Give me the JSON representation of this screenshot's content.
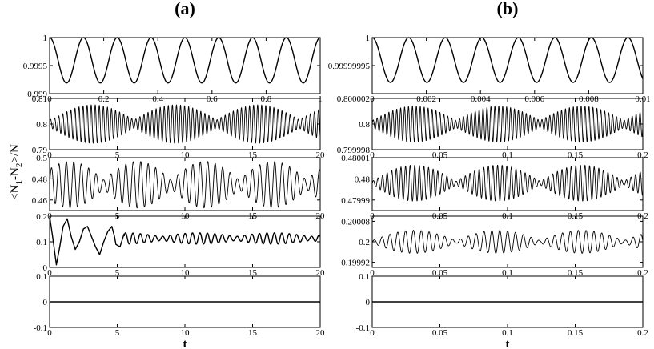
{
  "chart_data": [
    {
      "type": "line",
      "title": "(a)",
      "xlabel": "t",
      "ylabel_parts": [
        "<N",
        "1",
        "-N",
        "2",
        ">/N"
      ],
      "subplots": [
        {
          "xlim": [
            0,
            1
          ],
          "ylim": [
            0.999,
            1.0
          ],
          "x_ticks": [
            {
              "v": 0,
              "t": "0"
            },
            {
              "v": 0.2,
              "t": "0.2"
            },
            {
              "v": 0.4,
              "t": "0.4"
            },
            {
              "v": 0.6,
              "t": "0.6"
            },
            {
              "v": 0.8,
              "t": "0.8"
            },
            {
              "v": 1,
              "t": "1"
            }
          ],
          "y_ticks": [
            {
              "v": 0.999,
              "t": "0.999"
            },
            {
              "v": 0.9995,
              "t": "0.9995"
            },
            {
              "v": 1.0,
              "t": "1"
            }
          ],
          "series": [
            {
              "kind": "cosine",
              "y_min": 0.99919,
              "y_max": 1.0,
              "period": 0.125,
              "phase_start": "max"
            }
          ]
        },
        {
          "xlim": [
            0,
            20
          ],
          "ylim": [
            0.79,
            0.81
          ],
          "x_ticks": [
            {
              "v": 0,
              "t": "0"
            },
            {
              "v": 5,
              "t": "5"
            },
            {
              "v": 10,
              "t": "10"
            },
            {
              "v": 15,
              "t": "15"
            },
            {
              "v": 20,
              "t": "20"
            }
          ],
          "y_ticks": [
            {
              "v": 0.79,
              "t": "0.79"
            },
            {
              "v": 0.8,
              "t": "0.8"
            },
            {
              "v": 0.81,
              "t": "0.81"
            }
          ],
          "series": [
            {
              "kind": "beating",
              "center": 0.8,
              "amplitude": 0.0075,
              "carrier_period": 0.3,
              "envelope_period": 6.1,
              "envelope_floor": 0.22,
              "envelope_peak_t": 3.2
            }
          ]
        },
        {
          "xlim": [
            0,
            20
          ],
          "ylim": [
            0.45,
            0.5
          ],
          "x_ticks": [
            {
              "v": 0,
              "t": "0"
            },
            {
              "v": 5,
              "t": "5"
            },
            {
              "v": 10,
              "t": "10"
            },
            {
              "v": 15,
              "t": "15"
            },
            {
              "v": 20,
              "t": "20"
            }
          ],
          "y_ticks": [
            {
              "v": 0.46,
              "t": "0.46"
            },
            {
              "v": 0.48,
              "t": "0.48"
            },
            {
              "v": 0.5,
              "t": "0.5"
            }
          ],
          "series": [
            {
              "kind": "beating",
              "center": 0.4745,
              "amplitude": 0.022,
              "carrier_period": 0.55,
              "envelope_period": 5.0,
              "envelope_floor": 0.2,
              "envelope_peak_t": 1.5
            }
          ]
        },
        {
          "xlim": [
            0,
            20
          ],
          "ylim": [
            0,
            0.2
          ],
          "x_ticks": [
            {
              "v": 0,
              "t": "0"
            },
            {
              "v": 5,
              "t": "5"
            },
            {
              "v": 10,
              "t": "10"
            },
            {
              "v": 15,
              "t": "15"
            },
            {
              "v": 20,
              "t": "20"
            }
          ],
          "y_ticks": [
            {
              "v": 0,
              "t": "0"
            },
            {
              "v": 0.1,
              "t": "0.1"
            },
            {
              "v": 0.2,
              "t": "0.2"
            }
          ],
          "series": [
            {
              "kind": "transient",
              "points": [
                [
                  0,
                  0.2
                ],
                [
                  0.25,
                  0.11
                ],
                [
                  0.5,
                  0.01
                ],
                [
                  0.75,
                  0.08
                ],
                [
                  1.0,
                  0.16
                ],
                [
                  1.3,
                  0.19
                ],
                [
                  1.6,
                  0.12
                ],
                [
                  1.9,
                  0.07
                ],
                [
                  2.2,
                  0.1
                ],
                [
                  2.5,
                  0.15
                ],
                [
                  2.8,
                  0.16
                ],
                [
                  3.1,
                  0.12
                ],
                [
                  3.4,
                  0.08
                ],
                [
                  3.7,
                  0.05
                ],
                [
                  4.0,
                  0.1
                ],
                [
                  4.3,
                  0.14
                ],
                [
                  4.6,
                  0.16
                ],
                [
                  4.8,
                  0.12
                ],
                [
                  4.9,
                  0.09
                ],
                [
                  5.2,
                  0.08
                ],
                [
                  5.5,
                  0.13
                ]
              ],
              "tail": {
                "center": 0.113,
                "amplitude": 0.022,
                "carrier_period": 0.55,
                "envelope_period": 5.5,
                "envelope_floor": 0.35
              }
            }
          ]
        },
        {
          "xlim": [
            0,
            20
          ],
          "ylim": [
            -0.1,
            0.1
          ],
          "x_ticks": [
            {
              "v": 0,
              "t": "0"
            },
            {
              "v": 5,
              "t": "5"
            },
            {
              "v": 10,
              "t": "10"
            },
            {
              "v": 15,
              "t": "15"
            },
            {
              "v": 20,
              "t": "20"
            }
          ],
          "y_ticks": [
            {
              "v": -0.1,
              "t": "-0.1"
            },
            {
              "v": 0,
              "t": "0"
            },
            {
              "v": 0.1,
              "t": "0.1"
            }
          ],
          "series": [
            {
              "kind": "constant",
              "value": 0
            }
          ]
        }
      ]
    },
    {
      "type": "line",
      "title": "(b)",
      "xlabel": "t",
      "subplots": [
        {
          "xlim": [
            0,
            0.01
          ],
          "ylim": [
            0.9999999,
            1.0
          ],
          "x_ticks": [
            {
              "v": 0,
              "t": "0"
            },
            {
              "v": 0.002,
              "t": "0.002"
            },
            {
              "v": 0.004,
              "t": "0.004"
            },
            {
              "v": 0.006,
              "t": "0.006"
            },
            {
              "v": 0.008,
              "t": "0.008"
            },
            {
              "v": 0.01,
              "t": "0.01"
            }
          ],
          "y_ticks": [
            {
              "v": 0.99999995,
              "t": "0.99999995"
            },
            {
              "v": 1.0,
              "t": "1"
            }
          ],
          "series": [
            {
              "kind": "cosine",
              "y_min": 0.99999992,
              "y_max": 1.0,
              "period": 0.00135,
              "phase_start": "max"
            }
          ]
        },
        {
          "xlim": [
            0,
            0.2
          ],
          "ylim": [
            0.799998,
            0.800002
          ],
          "x_ticks": [
            {
              "v": 0,
              "t": "0"
            },
            {
              "v": 0.05,
              "t": "0.05"
            },
            {
              "v": 0.1,
              "t": "0.1"
            },
            {
              "v": 0.15,
              "t": "0.15"
            },
            {
              "v": 0.2,
              "t": "0.2"
            }
          ],
          "y_ticks": [
            {
              "v": 0.799998,
              "t": "0.799998"
            },
            {
              "v": 0.8,
              "t": "0.8"
            },
            {
              "v": 0.800002,
              "t": "0.800002"
            }
          ],
          "series": [
            {
              "kind": "beating",
              "center": 0.8,
              "amplitude": 1.4e-06,
              "carrier_period": 0.0029,
              "envelope_period": 0.062,
              "envelope_floor": 0.2,
              "envelope_peak_t": 0.031
            }
          ]
        },
        {
          "xlim": [
            0,
            0.2
          ],
          "ylim": [
            0.479985,
            0.48001
          ],
          "x_ticks": [
            {
              "v": 0,
              "t": "0"
            },
            {
              "v": 0.05,
              "t": "0.05"
            },
            {
              "v": 0.1,
              "t": "0.1"
            },
            {
              "v": 0.15,
              "t": "0.15"
            },
            {
              "v": 0.2,
              "t": "0.2"
            }
          ],
          "y_ticks": [
            {
              "v": 0.47999,
              "t": "0.47999"
            },
            {
              "v": 0.48,
              "t": "0.48"
            },
            {
              "v": 0.48001,
              "t": "0.48001"
            }
          ],
          "series": [
            {
              "kind": "beating",
              "center": 0.479998,
              "amplitude": 8.5e-06,
              "carrier_period": 0.0034,
              "envelope_period": 0.062,
              "envelope_floor": 0.1,
              "envelope_peak_t": 0.031
            }
          ]
        },
        {
          "xlim": [
            0,
            0.2
          ],
          "ylim": [
            0.1999,
            0.2001
          ],
          "x_ticks": [
            {
              "v": 0,
              "t": "0"
            },
            {
              "v": 0.05,
              "t": "0.05"
            },
            {
              "v": 0.1,
              "t": "0.1"
            },
            {
              "v": 0.15,
              "t": "0.15"
            },
            {
              "v": 0.2,
              "t": "0.2"
            }
          ],
          "y_ticks": [
            {
              "v": 0.19992,
              "t": "0.19992"
            },
            {
              "v": 0.2,
              "t": "0.2"
            },
            {
              "v": 0.20008,
              "t": "0.20008"
            }
          ],
          "series": [
            {
              "kind": "beating",
              "center": 0.2,
              "amplitude": 4.5e-05,
              "carrier_period": 0.0058,
              "envelope_period": 0.062,
              "envelope_floor": 0.1,
              "envelope_peak_t": 0.031
            }
          ]
        },
        {
          "xlim": [
            0,
            0.2
          ],
          "ylim": [
            -0.1,
            0.1
          ],
          "x_ticks": [
            {
              "v": 0,
              "t": "0"
            },
            {
              "v": 0.05,
              "t": "0.05"
            },
            {
              "v": 0.1,
              "t": "0.1"
            },
            {
              "v": 0.15,
              "t": "0.15"
            },
            {
              "v": 0.2,
              "t": "0.2"
            }
          ],
          "y_ticks": [
            {
              "v": -0.1,
              "t": "-0.1"
            },
            {
              "v": 0,
              "t": "0"
            },
            {
              "v": 0.1,
              "t": "0.1"
            }
          ],
          "series": [
            {
              "kind": "constant",
              "value": 0
            }
          ]
        }
      ]
    }
  ]
}
